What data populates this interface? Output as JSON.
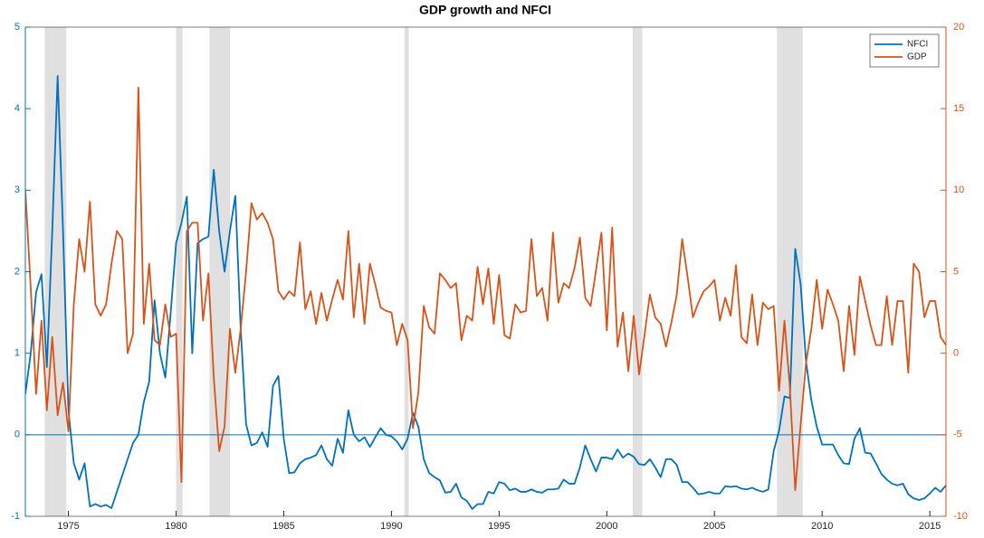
{
  "chart_data": {
    "type": "line",
    "title": "GDP growth and NFCI",
    "x": [
      1973,
      1973.25,
      1973.5,
      1973.75,
      1974,
      1974.25,
      1974.5,
      1974.75,
      1975,
      1975.25,
      1975.5,
      1975.75,
      1976,
      1976.25,
      1976.5,
      1976.75,
      1977,
      1977.25,
      1977.5,
      1977.75,
      1978,
      1978.25,
      1978.5,
      1978.75,
      1979,
      1979.25,
      1979.5,
      1979.75,
      1980,
      1980.25,
      1980.5,
      1980.75,
      1981,
      1981.25,
      1981.5,
      1981.75,
      1982,
      1982.25,
      1982.5,
      1982.75,
      1983,
      1983.25,
      1983.5,
      1983.75,
      1984,
      1984.25,
      1984.5,
      1984.75,
      1985,
      1985.25,
      1985.5,
      1985.75,
      1986,
      1986.25,
      1986.5,
      1986.75,
      1987,
      1987.25,
      1987.5,
      1987.75,
      1988,
      1988.25,
      1988.5,
      1988.75,
      1989,
      1989.25,
      1989.5,
      1989.75,
      1990,
      1990.25,
      1990.5,
      1990.75,
      1991,
      1991.25,
      1991.5,
      1991.75,
      1992,
      1992.25,
      1992.5,
      1992.75,
      1993,
      1993.25,
      1993.5,
      1993.75,
      1994,
      1994.25,
      1994.5,
      1994.75,
      1995,
      1995.25,
      1995.5,
      1995.75,
      1996,
      1996.25,
      1996.5,
      1996.75,
      1997,
      1997.25,
      1997.5,
      1997.75,
      1998,
      1998.25,
      1998.5,
      1998.75,
      1999,
      1999.25,
      1999.5,
      1999.75,
      2000,
      2000.25,
      2000.5,
      2000.75,
      2001,
      2001.25,
      2001.5,
      2001.75,
      2002,
      2002.25,
      2002.5,
      2002.75,
      2003,
      2003.25,
      2003.5,
      2003.75,
      2004,
      2004.25,
      2004.5,
      2004.75,
      2005,
      2005.25,
      2005.5,
      2005.75,
      2006,
      2006.25,
      2006.5,
      2006.75,
      2007,
      2007.25,
      2007.5,
      2007.75,
      2008,
      2008.25,
      2008.5,
      2008.75,
      2009,
      2009.25,
      2009.5,
      2009.75,
      2010,
      2010.25,
      2010.5,
      2010.75,
      2011,
      2011.25,
      2011.5,
      2011.75,
      2012,
      2012.25,
      2012.5,
      2012.75,
      2013,
      2013.25,
      2013.5,
      2013.75,
      2014,
      2014.25,
      2014.5,
      2014.75,
      2015,
      2015.25,
      2015.5,
      2015.75
    ],
    "series": [
      {
        "name": "NFCI",
        "color": "#0072bd",
        "values": [
          0.5,
          1.0,
          1.75,
          1.97,
          0.83,
          2.5,
          4.4,
          2.5,
          0.3,
          -0.35,
          -0.55,
          -0.35,
          -0.88,
          -0.85,
          -0.88,
          -0.86,
          -0.9,
          -0.7,
          -0.5,
          -0.3,
          -0.1,
          0.0,
          0.4,
          0.65,
          1.65,
          1.0,
          0.7,
          1.5,
          2.35,
          2.6,
          2.92,
          1.0,
          2.35,
          2.4,
          2.43,
          3.25,
          2.5,
          2.0,
          2.5,
          2.93,
          1.3,
          0.13,
          -0.13,
          -0.1,
          0.03,
          -0.15,
          0.6,
          0.72,
          -0.05,
          -0.47,
          -0.46,
          -0.35,
          -0.3,
          -0.28,
          -0.25,
          -0.13,
          -0.3,
          -0.38,
          -0.05,
          -0.22,
          0.3,
          0.0,
          -0.08,
          -0.03,
          -0.15,
          -0.03,
          0.08,
          0.0,
          -0.02,
          -0.08,
          -0.18,
          -0.05,
          0.27,
          0.1,
          -0.3,
          -0.47,
          -0.52,
          -0.56,
          -0.71,
          -0.7,
          -0.6,
          -0.77,
          -0.81,
          -0.91,
          -0.85,
          -0.85,
          -0.7,
          -0.72,
          -0.58,
          -0.6,
          -0.68,
          -0.66,
          -0.7,
          -0.7,
          -0.67,
          -0.7,
          -0.71,
          -0.67,
          -0.67,
          -0.66,
          -0.55,
          -0.6,
          -0.6,
          -0.4,
          -0.13,
          -0.3,
          -0.45,
          -0.28,
          -0.28,
          -0.3,
          -0.18,
          -0.28,
          -0.23,
          -0.27,
          -0.36,
          -0.37,
          -0.3,
          -0.4,
          -0.52,
          -0.3,
          -0.3,
          -0.37,
          -0.58,
          -0.58,
          -0.65,
          -0.73,
          -0.72,
          -0.7,
          -0.72,
          -0.72,
          -0.63,
          -0.64,
          -0.63,
          -0.66,
          -0.67,
          -0.65,
          -0.68,
          -0.7,
          -0.67,
          -0.2,
          0.05,
          0.47,
          0.45,
          2.28,
          1.85,
          0.9,
          0.42,
          0.1,
          -0.12,
          -0.12,
          -0.12,
          -0.25,
          -0.35,
          -0.36,
          -0.05,
          0.08,
          -0.22,
          -0.23,
          -0.35,
          -0.48,
          -0.55,
          -0.6,
          -0.62,
          -0.6,
          -0.73,
          -0.78,
          -0.8,
          -0.78,
          -0.72,
          -0.65,
          -0.7,
          -0.62
        ]
      },
      {
        "name": "GDP",
        "color": "#d95319",
        "axis": "y2",
        "values": [
          10,
          4,
          -2.5,
          2,
          -3.5,
          1,
          -3.8,
          -1.8,
          -4.8,
          3,
          7,
          5,
          9.3,
          3,
          2.3,
          3,
          5.5,
          7.5,
          7,
          0,
          1.2,
          16.3,
          1.8,
          5.5,
          0.8,
          0.5,
          3,
          1,
          1.2,
          -7.9,
          7.5,
          8,
          8,
          2,
          4.9,
          -1.5,
          -6,
          -4.5,
          1.5,
          -1.2,
          1.5,
          5,
          9.2,
          8.2,
          8.6,
          8,
          7,
          3.8,
          3.3,
          3.8,
          3.5,
          6.8,
          2.7,
          3.8,
          1.8,
          3.7,
          2,
          3.3,
          4.5,
          3.3,
          7.5,
          2.2,
          5.5,
          1.8,
          5.5,
          4.2,
          2.8,
          2.6,
          2.5,
          0.5,
          1.8,
          0.8,
          -4.6,
          -2.4,
          2.9,
          1.6,
          1.2,
          4.9,
          4.5,
          4,
          4.3,
          0.8,
          2.3,
          2,
          5.3,
          3,
          5.2,
          1.8,
          4.8,
          1.1,
          0.9,
          3,
          2.5,
          2.6,
          7,
          3.5,
          4,
          2,
          7.4,
          3.1,
          4.3,
          4,
          5.2,
          7.1,
          3.4,
          2.9,
          5.1,
          7.4,
          1.4,
          7.7,
          0.4,
          2.5,
          -1.1,
          2.3,
          -1.3,
          1.1,
          3.6,
          2.2,
          1.8,
          0.4,
          1.9,
          3.6,
          7,
          4.7,
          2.2,
          3.1,
          3.8,
          4.1,
          4.5,
          2,
          3.4,
          2.3,
          5.4,
          1,
          0.6,
          3.6,
          0.5,
          3.1,
          2.7,
          2.9,
          -2.3,
          2,
          -2.1,
          -8.4,
          -4.4,
          -0.6,
          1.5,
          4.5,
          1.5,
          3.9,
          3,
          2,
          -1.1,
          2.9,
          -0.1,
          4.7,
          3.2,
          1.7,
          0.5,
          0.5,
          3.5,
          0.5,
          3.2,
          3.2,
          -1.2,
          5.5,
          5,
          2.2,
          3.2,
          3.2,
          1,
          0.5
        ]
      }
    ],
    "recessions": [
      [
        1973.9,
        1974.9
      ],
      [
        1980.0,
        1980.3
      ],
      [
        1981.55,
        1982.5
      ],
      [
        1990.6,
        1990.8
      ],
      [
        2001.2,
        2001.65
      ],
      [
        2007.9,
        2009.1
      ]
    ],
    "recession_color": "#e0e0e0",
    "xlim": [
      1973,
      2015.75
    ],
    "xticks": [
      1975,
      1980,
      1985,
      1990,
      1995,
      2000,
      2005,
      2010,
      2015
    ],
    "ylim": [
      -1,
      5
    ],
    "yticks": [
      -1,
      0,
      1,
      2,
      3,
      4,
      5
    ],
    "y2lim": [
      -10,
      20
    ],
    "y2ticks": [
      -10,
      -5,
      0,
      5,
      10,
      15,
      20
    ],
    "hline_y": 0,
    "legend": "northeast"
  }
}
